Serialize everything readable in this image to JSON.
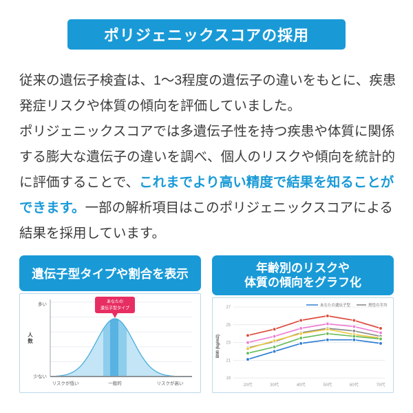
{
  "header": {
    "title": "ポリジェニックスコアの採用",
    "bg_color": "#199ad7",
    "text_color": "#ffffff"
  },
  "intro": {
    "p1": "従来の遺伝子検査は、1〜3程度の遺伝子の違いをもとに、疾患発症リスクや体質の傾向を評価していました。",
    "p2_before": "ポリジェニックスコアでは多遺伝子性を持つ疾患や体質に関係する膨大な遺伝子の違いを調べ、個人のリスクや傾向を統計的に評価することで、",
    "p2_highlight": "これまでより高い精度で結果を知ることができます。",
    "p2_after": "一部の解析項目はこのポリジェニックスコアによる結果を採用しています。",
    "highlight_color": "#199ad7"
  },
  "panels": {
    "left": {
      "label": "遺伝子型タイプや割合を表示"
    },
    "right": {
      "label_line1": "年齢別のリスクや",
      "label_line2": "体質の傾向をグラフ化"
    }
  },
  "chart_data": [
    {
      "type": "area",
      "subtype": "normal_distribution_bell_curve",
      "panel_label": "遺伝子型タイプや割合を表示",
      "ylabel": "人数",
      "y_axis_top_label": "多い",
      "y_axis_bottom_label": "少ない",
      "x_labels": [
        "リスクが低い",
        "一般的",
        "リスクが高い"
      ],
      "grid": true,
      "annotation": {
        "text_line1": "あなたの",
        "text_line2": "遺伝子型タイプ",
        "color": "#e72e62",
        "points_at": "peak of distribution (一般的)"
      },
      "curve": {
        "fill": "#c3e5f6",
        "stroke": "#49aede",
        "band_mid_fill": "#8ecdec",
        "band_center_fill": "#58b2e2"
      }
    },
    {
      "type": "line",
      "panel_label": "年齢別のリスクや体質の傾向をグラフ化",
      "categories": [
        "20代",
        "30代",
        "40代",
        "50代",
        "60代",
        "70代"
      ],
      "ylabel": "BMI (kg/m2)",
      "ylim": [
        19,
        27
      ],
      "yticks": [
        19,
        21,
        23,
        25,
        27
      ],
      "grid": true,
      "legend_position": "top-right",
      "legend": [
        {
          "label": "あなたの遺伝子型",
          "color": "#2e7ed2"
        },
        {
          "label": "男性の平均",
          "color": "#8b8b8b"
        }
      ],
      "series": [
        {
          "name": "red",
          "color": "#dd4b3e",
          "values": [
            23.8,
            24.5,
            25.5,
            26.0,
            25.5,
            24.6
          ]
        },
        {
          "name": "pink",
          "color": "#ee7fd5",
          "values": [
            23.0,
            23.7,
            24.6,
            25.1,
            24.8,
            24.1
          ]
        },
        {
          "name": "male-average",
          "label": "男性の平均",
          "color": "#8b8b8b",
          "values": [
            22.4,
            23.1,
            24.1,
            24.6,
            24.3,
            23.7
          ]
        },
        {
          "name": "yellow",
          "color": "#eec843",
          "values": [
            22.3,
            23.2,
            24.0,
            24.5,
            23.9,
            23.5
          ]
        },
        {
          "name": "green",
          "color": "#67bd5e",
          "values": [
            21.8,
            22.5,
            23.5,
            24.0,
            23.7,
            23.4
          ]
        },
        {
          "name": "your-genotype",
          "label": "あなたの遺伝子型",
          "color": "#2e7ed2",
          "values": [
            21.1,
            22.0,
            22.9,
            23.3,
            23.3,
            22.9
          ]
        }
      ]
    }
  ]
}
